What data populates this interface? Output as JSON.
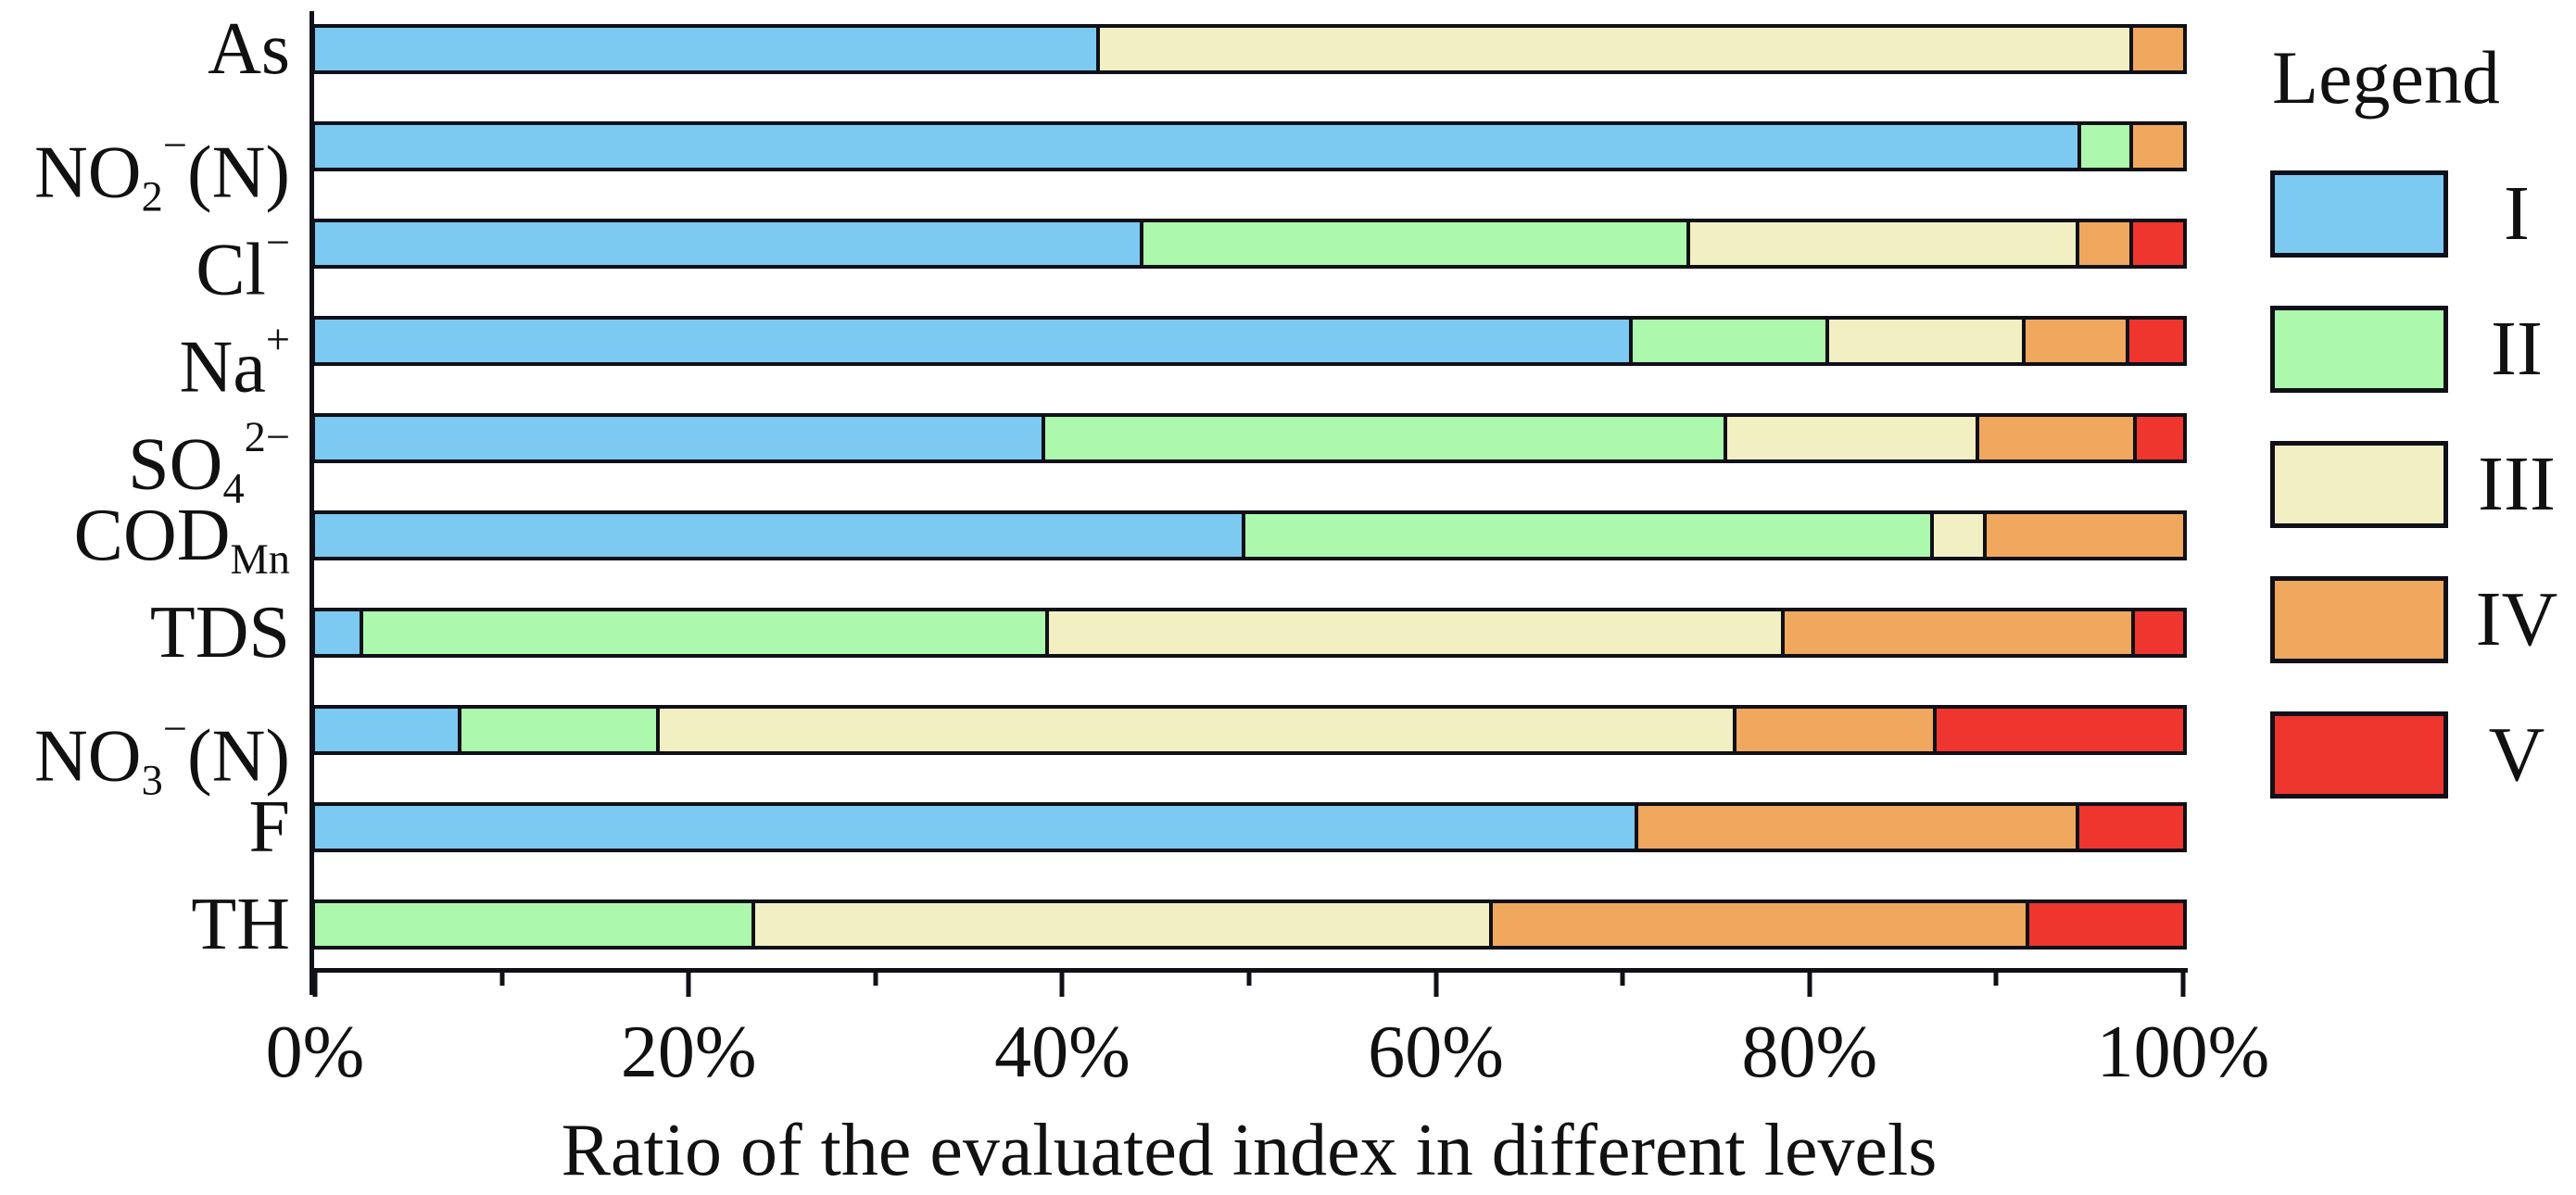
{
  "figure": {
    "xlabel": "Ratio of the evaluated index in different levels",
    "legend_title": "Legend"
  },
  "chart_data": {
    "type": "bar",
    "variant": "horizontal-stacked-percentage",
    "title": "",
    "xlabel": "Ratio of the evaluated index in different levels",
    "ylabel": "",
    "xlim": [
      0,
      100
    ],
    "x_tick_labels": [
      "0%",
      "20%",
      "40%",
      "60%",
      "80%",
      "100%"
    ],
    "x_major_ticks": [
      0,
      20,
      40,
      60,
      80,
      100
    ],
    "x_minor_ticks": [
      10,
      30,
      50,
      70,
      90
    ],
    "grid": "off",
    "legend_position": "right",
    "legend_title": "Legend",
    "categories": [
      "As",
      "NO2-(N)",
      "Cl-",
      "Na+",
      "SO4 2-",
      "COD Mn",
      "TDS",
      "NO3-(N)",
      "F",
      "TH"
    ],
    "categories_rich": [
      [
        {
          "t": "As",
          "s": ""
        }
      ],
      [
        {
          "t": "NO",
          "s": ""
        },
        {
          "t": "2",
          "s": "sub"
        },
        {
          "t": "−",
          "s": "sup"
        },
        {
          "t": "(N)",
          "s": ""
        }
      ],
      [
        {
          "t": "Cl",
          "s": ""
        },
        {
          "t": "−",
          "s": "sup"
        }
      ],
      [
        {
          "t": "Na",
          "s": ""
        },
        {
          "t": "+",
          "s": "sup"
        }
      ],
      [
        {
          "t": "SO",
          "s": ""
        },
        {
          "t": "4",
          "s": "sub"
        },
        {
          "t": "2−",
          "s": "sup"
        }
      ],
      [
        {
          "t": "COD",
          "s": ""
        },
        {
          "t": "Mn",
          "s": "sub"
        }
      ],
      [
        {
          "t": "TDS",
          "s": ""
        }
      ],
      [
        {
          "t": "NO",
          "s": ""
        },
        {
          "t": "3",
          "s": "sub"
        },
        {
          "t": "−",
          "s": "sup"
        },
        {
          "t": "(N)",
          "s": ""
        }
      ],
      [
        {
          "t": "F",
          "s": ""
        }
      ],
      [
        {
          "t": "TH",
          "s": ""
        }
      ]
    ],
    "series": [
      {
        "name": "I",
        "color": "#7CC9F1",
        "values": [
          42.0,
          94.7,
          44.5,
          70.9,
          39.2,
          49.9,
          2.4,
          7.7,
          70.9,
          0
        ]
      },
      {
        "name": "II",
        "color": "#ACF8AC",
        "values": [
          0,
          2.6,
          29.3,
          10.4,
          36.6,
          36.9,
          36.8,
          10.5,
          0,
          23.5
        ]
      },
      {
        "name": "III",
        "color": "#F2EFC3",
        "values": [
          55.3,
          0,
          20.8,
          10.4,
          13.4,
          2.6,
          39.5,
          57.9,
          0,
          39.5
        ]
      },
      {
        "name": "IV",
        "color": "#F0A75E",
        "values": [
          2.7,
          2.7,
          2.7,
          5.4,
          8.3,
          10.6,
          18.7,
          10.6,
          23.5,
          28.7
        ]
      },
      {
        "name": "V",
        "color": "#EE352E",
        "values": [
          0,
          0,
          2.7,
          2.9,
          2.5,
          0,
          2.6,
          13.3,
          5.6,
          8.3
        ]
      }
    ]
  }
}
